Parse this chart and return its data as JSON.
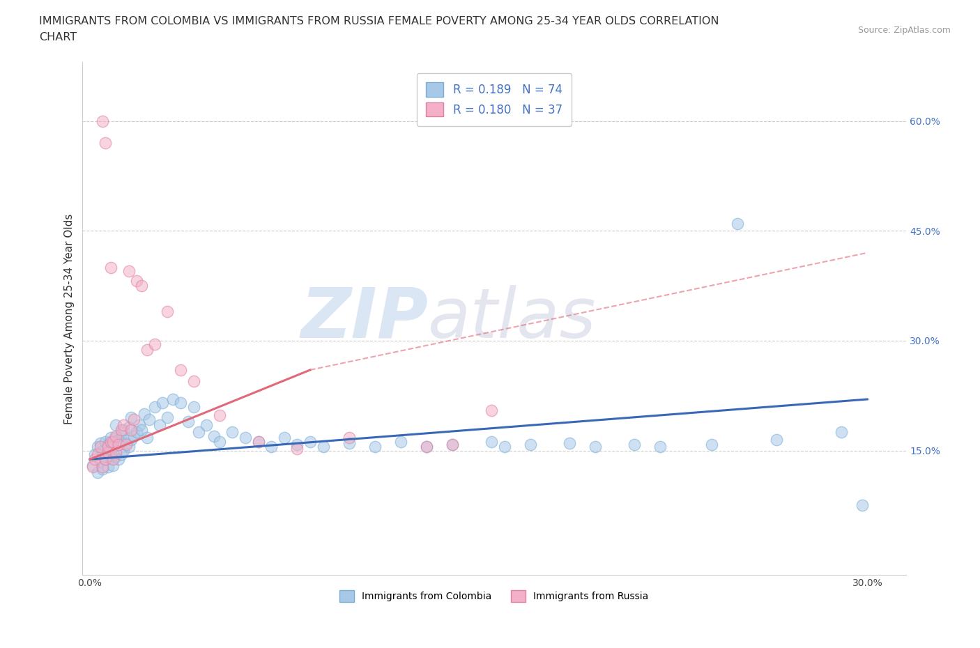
{
  "title_line1": "IMMIGRANTS FROM COLOMBIA VS IMMIGRANTS FROM RUSSIA FEMALE POVERTY AMONG 25-34 YEAR OLDS CORRELATION",
  "title_line2": "CHART",
  "source": "Source: ZipAtlas.com",
  "ylabel": "Female Poverty Among 25-34 Year Olds",
  "xlim": [
    -0.003,
    0.315
  ],
  "ylim": [
    -0.02,
    0.68
  ],
  "xtick_positions": [
    0.0,
    0.05,
    0.1,
    0.15,
    0.2,
    0.25,
    0.3
  ],
  "xticklabels": [
    "0.0%",
    "",
    "",
    "",
    "",
    "",
    "30.0%"
  ],
  "ytick_positions": [
    0.15,
    0.3,
    0.45,
    0.6
  ],
  "ytick_labels": [
    "15.0%",
    "30.0%",
    "45.0%",
    "60.0%"
  ],
  "watermark_zip": "ZIP",
  "watermark_atlas": "atlas",
  "colombia_color": "#a8c8e8",
  "colombia_edge": "#7aaed4",
  "russia_color": "#f4b0c8",
  "russia_edge": "#e080a0",
  "colombia_R": "0.189",
  "colombia_N": "74",
  "russia_R": "0.180",
  "russia_N": "37",
  "colombia_x": [
    0.001,
    0.002,
    0.003,
    0.003,
    0.004,
    0.004,
    0.005,
    0.005,
    0.006,
    0.006,
    0.007,
    0.007,
    0.008,
    0.008,
    0.009,
    0.009,
    0.01,
    0.01,
    0.01,
    0.011,
    0.011,
    0.012,
    0.012,
    0.013,
    0.013,
    0.014,
    0.015,
    0.015,
    0.016,
    0.016,
    0.017,
    0.018,
    0.019,
    0.02,
    0.021,
    0.022,
    0.023,
    0.025,
    0.027,
    0.028,
    0.03,
    0.032,
    0.035,
    0.038,
    0.04,
    0.042,
    0.045,
    0.048,
    0.05,
    0.055,
    0.06,
    0.065,
    0.07,
    0.075,
    0.08,
    0.085,
    0.09,
    0.1,
    0.11,
    0.12,
    0.13,
    0.14,
    0.155,
    0.16,
    0.17,
    0.185,
    0.195,
    0.21,
    0.22,
    0.24,
    0.25,
    0.265,
    0.29,
    0.298
  ],
  "colombia_y": [
    0.13,
    0.145,
    0.12,
    0.155,
    0.135,
    0.16,
    0.125,
    0.15,
    0.138,
    0.162,
    0.128,
    0.158,
    0.14,
    0.168,
    0.13,
    0.155,
    0.142,
    0.168,
    0.185,
    0.138,
    0.165,
    0.145,
    0.175,
    0.15,
    0.178,
    0.16,
    0.155,
    0.182,
    0.165,
    0.195,
    0.17,
    0.175,
    0.185,
    0.178,
    0.2,
    0.168,
    0.192,
    0.21,
    0.185,
    0.215,
    0.195,
    0.22,
    0.215,
    0.19,
    0.21,
    0.175,
    0.185,
    0.17,
    0.162,
    0.175,
    0.168,
    0.162,
    0.155,
    0.168,
    0.158,
    0.162,
    0.155,
    0.16,
    0.155,
    0.162,
    0.155,
    0.158,
    0.162,
    0.155,
    0.158,
    0.16,
    0.155,
    0.158,
    0.155,
    0.158,
    0.46,
    0.165,
    0.175,
    0.075
  ],
  "russia_x": [
    0.001,
    0.002,
    0.003,
    0.004,
    0.005,
    0.005,
    0.006,
    0.006,
    0.007,
    0.007,
    0.008,
    0.008,
    0.009,
    0.009,
    0.01,
    0.01,
    0.011,
    0.012,
    0.013,
    0.014,
    0.015,
    0.016,
    0.017,
    0.018,
    0.02,
    0.022,
    0.025,
    0.03,
    0.035,
    0.04,
    0.05,
    0.065,
    0.08,
    0.1,
    0.13,
    0.14,
    0.155
  ],
  "russia_y": [
    0.128,
    0.138,
    0.145,
    0.155,
    0.128,
    0.6,
    0.138,
    0.57,
    0.148,
    0.155,
    0.4,
    0.162,
    0.138,
    0.162,
    0.148,
    0.17,
    0.158,
    0.178,
    0.185,
    0.158,
    0.395,
    0.178,
    0.192,
    0.382,
    0.375,
    0.288,
    0.295,
    0.34,
    0.26,
    0.245,
    0.198,
    0.162,
    0.152,
    0.168,
    0.155,
    0.158,
    0.205
  ],
  "colombia_trend": [
    0.0,
    0.3,
    0.138,
    0.22
  ],
  "russia_trend_solid": [
    0.0,
    0.085,
    0.138,
    0.26
  ],
  "russia_trend_dashed": [
    0.085,
    0.3,
    0.26,
    0.42
  ],
  "colombia_line_color": "#3a68b8",
  "russia_line_color": "#e06878",
  "tick_color": "#4472c4",
  "gridline_color": "#cccccc",
  "background_color": "#ffffff",
  "title_fontsize": 11.5,
  "axis_label_fontsize": 11,
  "tick_fontsize": 10,
  "legend_fontsize": 12,
  "marker_size": 140,
  "marker_alpha": 0.55
}
